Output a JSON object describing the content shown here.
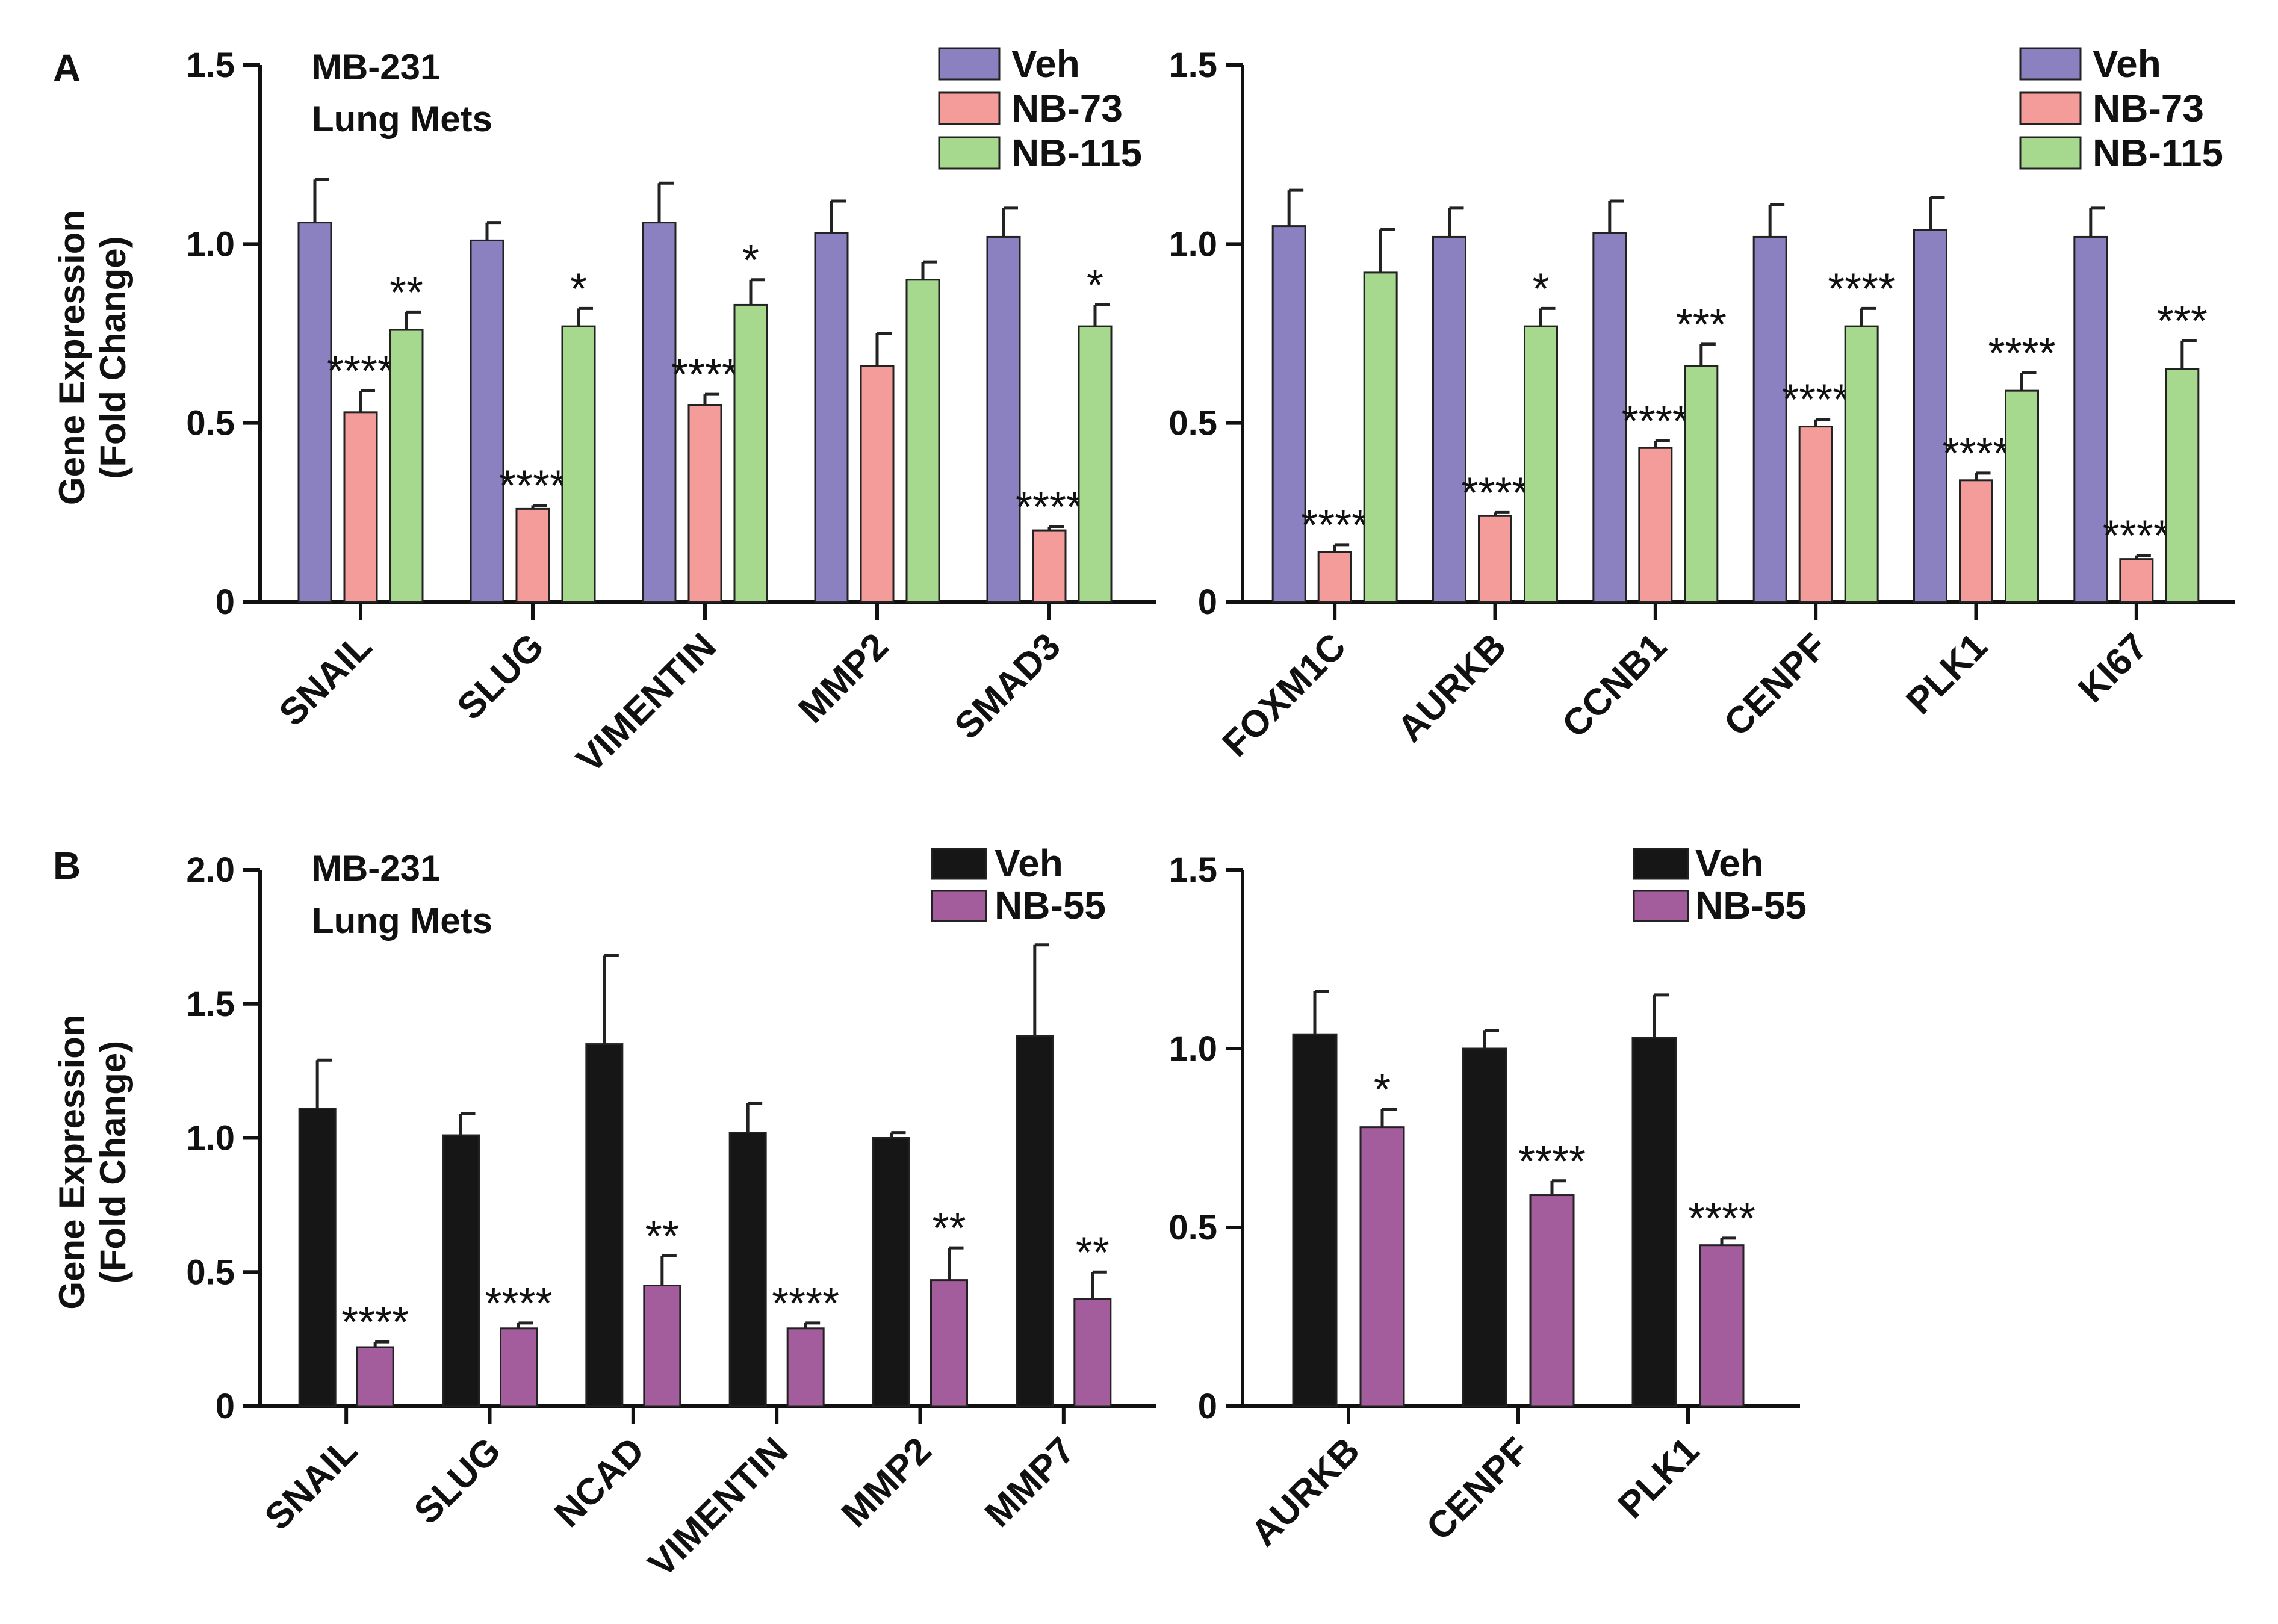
{
  "panel_labels": [
    "A",
    "B"
  ],
  "chart_data": [
    {
      "type": "bar",
      "panel": "A",
      "annotation": [
        "MB-231",
        "Lung Mets"
      ],
      "ylabel": [
        "Gene Expression",
        "(Fold Change)"
      ],
      "ylim": [
        0,
        1.5
      ],
      "yticks": [
        "0",
        "0.5",
        "1.0",
        "1.5"
      ],
      "ytick_values": [
        0,
        0.5,
        1.0,
        1.5
      ],
      "categories": [
        "SNAIL",
        "SLUG",
        "VIMENTIN",
        "MMP2",
        "SMAD3"
      ],
      "legend": "top-right",
      "series": [
        {
          "name": "Veh",
          "color": "#8b80c0",
          "values": [
            1.06,
            1.01,
            1.06,
            1.03,
            1.02
          ],
          "errors": [
            0.12,
            0.05,
            0.11,
            0.09,
            0.08
          ],
          "sig": [
            "",
            "",
            "",
            "",
            ""
          ]
        },
        {
          "name": "NB-73",
          "color": "#f49c9a",
          "values": [
            0.53,
            0.26,
            0.55,
            0.66,
            0.2
          ],
          "errors": [
            0.06,
            0.01,
            0.03,
            0.09,
            0.01
          ],
          "sig": [
            "****",
            "****",
            "****",
            "",
            "****"
          ]
        },
        {
          "name": "NB-115",
          "color": "#a6d98e",
          "values": [
            0.76,
            0.77,
            0.83,
            0.9,
            0.77
          ],
          "errors": [
            0.05,
            0.05,
            0.07,
            0.05,
            0.06
          ],
          "sig": [
            "**",
            "*",
            "*",
            "",
            "*"
          ]
        }
      ]
    },
    {
      "type": "bar",
      "panel": "A",
      "annotation": [],
      "ylabel": [],
      "ylim": [
        0,
        1.5
      ],
      "yticks": [
        "0",
        "0.5",
        "1.0",
        "1.5"
      ],
      "ytick_values": [
        0,
        0.5,
        1.0,
        1.5
      ],
      "categories": [
        "FOXM1C",
        "AURKB",
        "CCNB1",
        "CENPF",
        "PLK1",
        "KI67"
      ],
      "legend": "top-right",
      "series": [
        {
          "name": "Veh",
          "color": "#8b80c0",
          "values": [
            1.05,
            1.02,
            1.03,
            1.02,
            1.04,
            1.02
          ],
          "errors": [
            0.1,
            0.08,
            0.09,
            0.09,
            0.09,
            0.08
          ],
          "sig": [
            "",
            "",
            "",
            "",
            "",
            ""
          ]
        },
        {
          "name": "NB-73",
          "color": "#f49c9a",
          "values": [
            0.14,
            0.24,
            0.43,
            0.49,
            0.34,
            0.12
          ],
          "errors": [
            0.02,
            0.01,
            0.02,
            0.02,
            0.02,
            0.01
          ],
          "sig": [
            "****",
            "****",
            "****",
            "****",
            "****",
            "****"
          ]
        },
        {
          "name": "NB-115",
          "color": "#a6d98e",
          "values": [
            0.92,
            0.77,
            0.66,
            0.77,
            0.59,
            0.65
          ],
          "errors": [
            0.12,
            0.05,
            0.06,
            0.05,
            0.05,
            0.08
          ],
          "sig": [
            "",
            "*",
            "***",
            "****",
            "****",
            "***"
          ]
        }
      ]
    },
    {
      "type": "bar",
      "panel": "B",
      "annotation": [
        "MB-231",
        "Lung Mets"
      ],
      "ylabel": [
        "Gene Expression",
        "(Fold Change)"
      ],
      "ylim": [
        0,
        2.0
      ],
      "yticks": [
        "0",
        "0.5",
        "1.0",
        "1.5",
        "2.0"
      ],
      "ytick_values": [
        0,
        0.5,
        1.0,
        1.5,
        2.0
      ],
      "categories": [
        "SNAIL",
        "SLUG",
        "NCAD",
        "VIMENTIN",
        "MMP2",
        "MMP7"
      ],
      "legend": "top-right",
      "series": [
        {
          "name": "Veh",
          "color": "#161616",
          "values": [
            1.11,
            1.01,
            1.35,
            1.02,
            1.0,
            1.38
          ],
          "errors": [
            0.18,
            0.08,
            0.33,
            0.11,
            0.02,
            0.34
          ],
          "sig": [
            "",
            "",
            "",
            "",
            "",
            ""
          ]
        },
        {
          "name": "NB-55",
          "color": "#a35c9c",
          "values": [
            0.22,
            0.29,
            0.45,
            0.29,
            0.47,
            0.4
          ],
          "errors": [
            0.02,
            0.02,
            0.11,
            0.02,
            0.12,
            0.1
          ],
          "sig": [
            "****",
            "****",
            "**",
            "****",
            "**",
            "**"
          ]
        }
      ]
    },
    {
      "type": "bar",
      "panel": "B",
      "annotation": [],
      "ylabel": [],
      "ylim": [
        0,
        1.5
      ],
      "yticks": [
        "0",
        "0.5",
        "1.0",
        "1.5"
      ],
      "ytick_values": [
        0,
        0.5,
        1.0,
        1.5
      ],
      "categories": [
        "AURKB",
        "CENPF",
        "PLK1"
      ],
      "legend": "top-right",
      "series": [
        {
          "name": "Veh",
          "color": "#161616",
          "values": [
            1.04,
            1.0,
            1.03
          ],
          "errors": [
            0.12,
            0.05,
            0.12
          ],
          "sig": [
            "",
            "",
            ""
          ]
        },
        {
          "name": "NB-55",
          "color": "#a35c9c",
          "values": [
            0.78,
            0.59,
            0.45
          ],
          "errors": [
            0.05,
            0.04,
            0.02
          ],
          "sig": [
            "*",
            "****",
            "****"
          ]
        }
      ]
    }
  ]
}
